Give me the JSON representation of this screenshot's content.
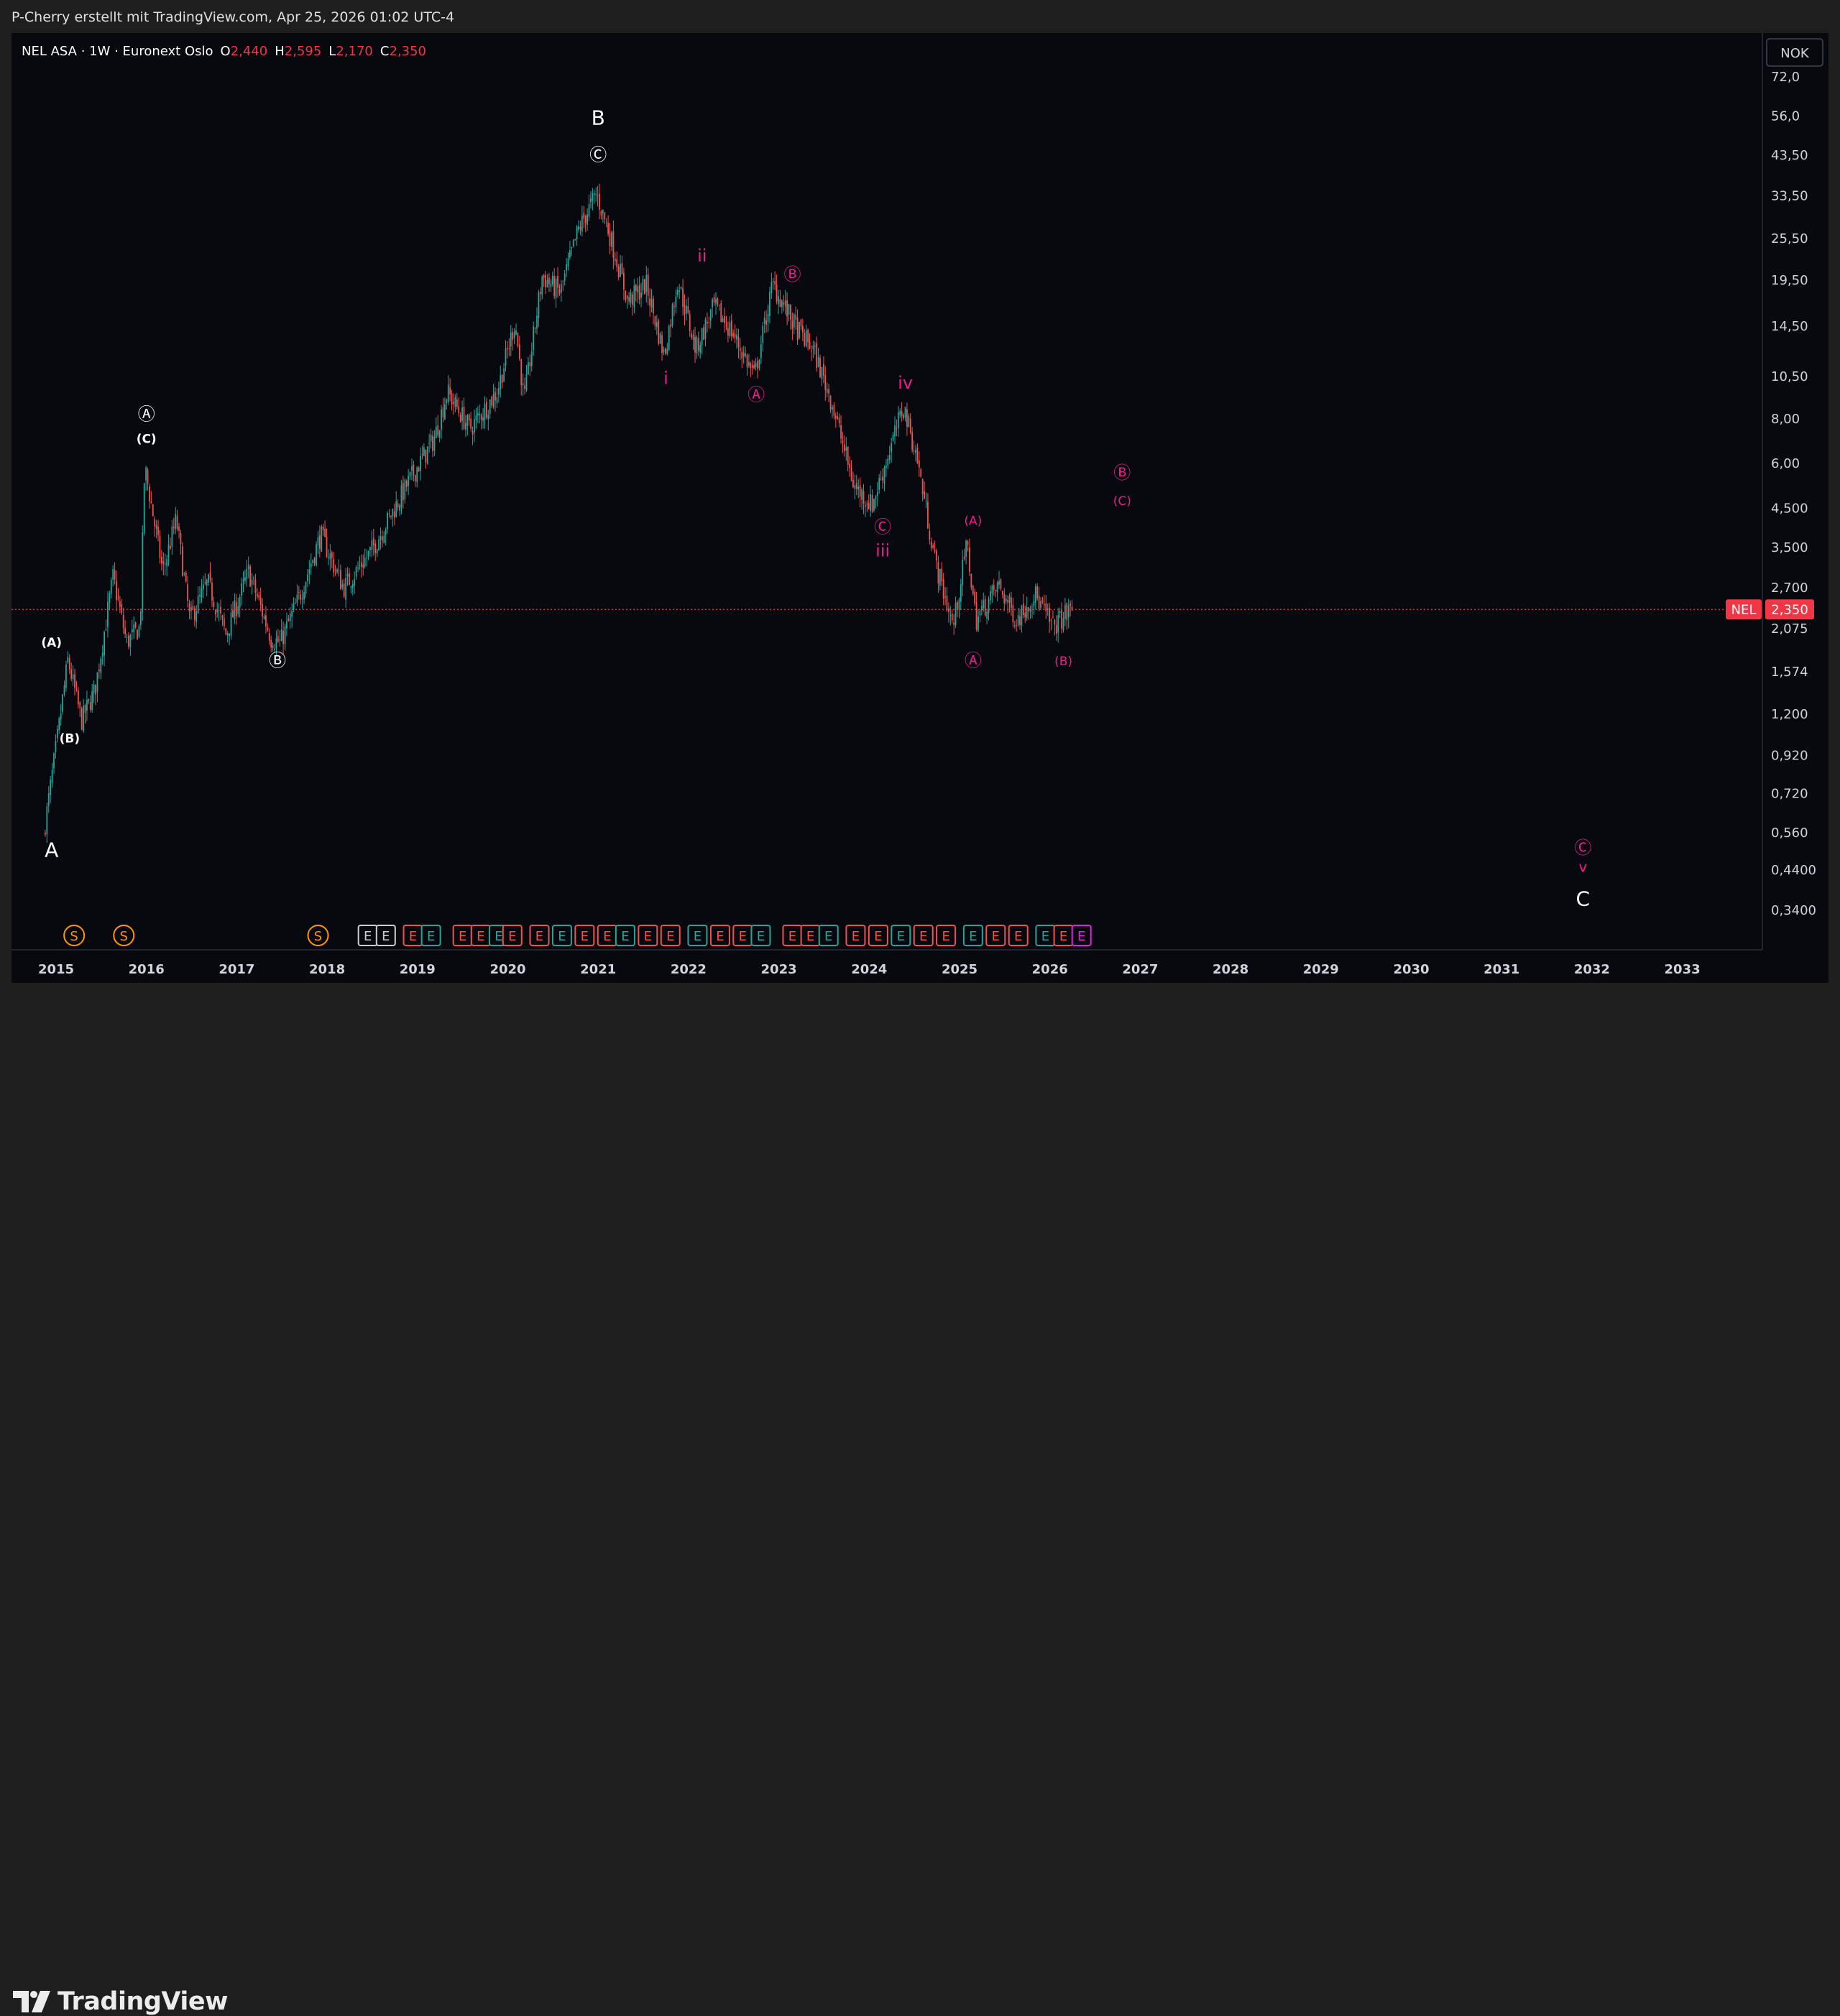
{
  "header": {
    "attribution": "P-Cherry erstellt mit TradingView.com, Apr 25, 2026 01:02 UTC-4"
  },
  "symbol": {
    "name": "NEL ASA · 1W · Euronext Oslo",
    "o_label": "O",
    "o_value": "2,440",
    "h_label": "H",
    "h_value": "2,595",
    "l_label": "L",
    "l_value": "2,170",
    "c_label": "C",
    "c_value": "2,350"
  },
  "currency": "NOK",
  "last_price": {
    "ticker": "NEL",
    "value": "2,350",
    "color": "#f23645"
  },
  "brand": "TradingView",
  "colors": {
    "up": "#26a69a",
    "down": "#ef5350",
    "wave_white": "#ffffff",
    "wave_magenta": "#e91e8c",
    "dividend": "#ff9800"
  },
  "chart_data": {
    "type": "candlestick",
    "scale": "log",
    "ylim": [
      0.29,
      86
    ],
    "x_range": [
      "2014-09",
      "2033-12"
    ],
    "x_ticks": [
      "2015",
      "2016",
      "2017",
      "2018",
      "2019",
      "2020",
      "2021",
      "2022",
      "2023",
      "2024",
      "2025",
      "2026",
      "2027",
      "2028",
      "2029",
      "2030",
      "2031",
      "2032",
      "2033"
    ],
    "y_ticks": [
      "72,0",
      "56,0",
      "43,50",
      "33,50",
      "25,50",
      "19,50",
      "14,50",
      "10,50",
      "8,00",
      "6,00",
      "4,500",
      "3,500",
      "2,700",
      "2,075",
      "1,574",
      "1,200",
      "0,920",
      "0,720",
      "0,560",
      "0,4400",
      "0,3400"
    ],
    "price_path": [
      {
        "t": 2014.88,
        "p": 0.55
      },
      {
        "t": 2015.05,
        "p": 1.1
      },
      {
        "t": 2015.15,
        "p": 1.7
      },
      {
        "t": 2015.3,
        "p": 1.15
      },
      {
        "t": 2015.45,
        "p": 1.4
      },
      {
        "t": 2015.65,
        "p": 2.9
      },
      {
        "t": 2015.8,
        "p": 1.9
      },
      {
        "t": 2015.95,
        "p": 2.1
      },
      {
        "t": 2016.0,
        "p": 5.9
      },
      {
        "t": 2016.2,
        "p": 3.0
      },
      {
        "t": 2016.35,
        "p": 4.2
      },
      {
        "t": 2016.5,
        "p": 2.2
      },
      {
        "t": 2016.7,
        "p": 2.8
      },
      {
        "t": 2016.9,
        "p": 2.0
      },
      {
        "t": 2017.15,
        "p": 3.0
      },
      {
        "t": 2017.4,
        "p": 1.95
      },
      {
        "t": 2017.5,
        "p": 1.9
      },
      {
        "t": 2017.7,
        "p": 2.5
      },
      {
        "t": 2017.95,
        "p": 3.8
      },
      {
        "t": 2018.2,
        "p": 2.7
      },
      {
        "t": 2018.5,
        "p": 3.4
      },
      {
        "t": 2018.7,
        "p": 4.2
      },
      {
        "t": 2018.95,
        "p": 5.5
      },
      {
        "t": 2019.2,
        "p": 7.0
      },
      {
        "t": 2019.35,
        "p": 9.5
      },
      {
        "t": 2019.6,
        "p": 7.5
      },
      {
        "t": 2019.9,
        "p": 9.5
      },
      {
        "t": 2020.1,
        "p": 15.0
      },
      {
        "t": 2020.2,
        "p": 9.0
      },
      {
        "t": 2020.4,
        "p": 20.0
      },
      {
        "t": 2020.6,
        "p": 18.0
      },
      {
        "t": 2020.8,
        "p": 27.0
      },
      {
        "t": 2021.0,
        "p": 34.0
      },
      {
        "t": 2021.15,
        "p": 26.0
      },
      {
        "t": 2021.35,
        "p": 17.0
      },
      {
        "t": 2021.55,
        "p": 19.0
      },
      {
        "t": 2021.75,
        "p": 12.0
      },
      {
        "t": 2021.9,
        "p": 19.5
      },
      {
        "t": 2022.1,
        "p": 12.5
      },
      {
        "t": 2022.3,
        "p": 16.5
      },
      {
        "t": 2022.5,
        "p": 14.0
      },
      {
        "t": 2022.75,
        "p": 10.5
      },
      {
        "t": 2022.95,
        "p": 19.0
      },
      {
        "t": 2023.2,
        "p": 14.5
      },
      {
        "t": 2023.4,
        "p": 12.5
      },
      {
        "t": 2023.6,
        "p": 9.0
      },
      {
        "t": 2023.85,
        "p": 5.2
      },
      {
        "t": 2024.05,
        "p": 4.6
      },
      {
        "t": 2024.2,
        "p": 6.0
      },
      {
        "t": 2024.4,
        "p": 8.7
      },
      {
        "t": 2024.55,
        "p": 6.2
      },
      {
        "t": 2024.75,
        "p": 3.2
      },
      {
        "t": 2024.95,
        "p": 2.1
      },
      {
        "t": 2025.1,
        "p": 3.6
      },
      {
        "t": 2025.2,
        "p": 2.2
      },
      {
        "t": 2025.45,
        "p": 2.75
      },
      {
        "t": 2025.65,
        "p": 2.2
      },
      {
        "t": 2025.85,
        "p": 2.6
      },
      {
        "t": 2026.05,
        "p": 2.1
      },
      {
        "t": 2026.25,
        "p": 2.35
      }
    ],
    "wave_labels": [
      {
        "text": "A",
        "t": 2014.95,
        "p": 0.48,
        "color": "#ffffff",
        "size": 28
      },
      {
        "text": "(A)",
        "t": 2014.95,
        "p": 1.85,
        "color": "#ffffff",
        "size": 17,
        "bold": true
      },
      {
        "text": "(B)",
        "t": 2015.15,
        "p": 1.0,
        "color": "#ffffff",
        "size": 17,
        "bold": true
      },
      {
        "text": "Ⓐ",
        "t": 2016.0,
        "p": 7.95,
        "color": "#ffffff",
        "size": 24
      },
      {
        "text": "(C)",
        "t": 2016.0,
        "p": 6.85,
        "color": "#ffffff",
        "size": 17,
        "bold": true
      },
      {
        "text": "Ⓑ",
        "t": 2017.45,
        "p": 1.63,
        "color": "#ffffff",
        "size": 24
      },
      {
        "text": "B",
        "t": 2021.0,
        "p": 53.0,
        "color": "#ffffff",
        "size": 28
      },
      {
        "text": "Ⓒ",
        "t": 2021.0,
        "p": 42.0,
        "color": "#ffffff",
        "size": 24
      },
      {
        "text": "i",
        "t": 2021.75,
        "p": 10.0,
        "color": "#e91e8c",
        "size": 24
      },
      {
        "text": "ii",
        "t": 2022.15,
        "p": 22.0,
        "color": "#e91e8c",
        "size": 24
      },
      {
        "text": "Ⓐ",
        "t": 2022.75,
        "p": 9.0,
        "color": "#e91e8c",
        "size": 24
      },
      {
        "text": "Ⓑ",
        "t": 2023.15,
        "p": 19.5,
        "color": "#e91e8c",
        "size": 24
      },
      {
        "text": "iv",
        "t": 2024.4,
        "p": 9.7,
        "color": "#e91e8c",
        "size": 24
      },
      {
        "text": "Ⓒ",
        "t": 2024.15,
        "p": 3.85,
        "color": "#e91e8c",
        "size": 24
      },
      {
        "text": "iii",
        "t": 2024.15,
        "p": 3.3,
        "color": "#e91e8c",
        "size": 24
      },
      {
        "text": "(A)",
        "t": 2025.15,
        "p": 4.05,
        "color": "#e91e8c",
        "size": 17
      },
      {
        "text": "Ⓐ",
        "t": 2025.15,
        "p": 1.63,
        "color": "#e91e8c",
        "size": 24
      },
      {
        "text": "(B)",
        "t": 2026.15,
        "p": 1.64,
        "color": "#e91e8c",
        "size": 17
      },
      {
        "text": "Ⓑ",
        "t": 2026.8,
        "p": 5.45,
        "color": "#e91e8c",
        "size": 24
      },
      {
        "text": "(C)",
        "t": 2026.8,
        "p": 4.6,
        "color": "#e91e8c",
        "size": 17
      },
      {
        "text": "Ⓒ",
        "t": 2031.9,
        "p": 0.49,
        "color": "#e91e8c",
        "size": 24
      },
      {
        "text": "v",
        "t": 2031.9,
        "p": 0.435,
        "color": "#e91e8c",
        "size": 20
      },
      {
        "text": "C",
        "t": 2031.9,
        "p": 0.35,
        "color": "#ffffff",
        "size": 28
      }
    ],
    "events": [
      {
        "t": 2015.2,
        "type": "S"
      },
      {
        "t": 2015.75,
        "type": "S"
      },
      {
        "t": 2017.9,
        "type": "S"
      },
      {
        "t": 2018.45,
        "type": "E"
      },
      {
        "t": 2018.65,
        "type": "E"
      },
      {
        "t": 2018.95,
        "type": "E"
      },
      {
        "t": 2019.15,
        "type": "E"
      },
      {
        "t": 2019.5,
        "type": "E"
      },
      {
        "t": 2019.7,
        "type": "E"
      },
      {
        "t": 2019.9,
        "type": "E"
      },
      {
        "t": 2020.05,
        "type": "E"
      },
      {
        "t": 2020.35,
        "type": "E"
      },
      {
        "t": 2020.6,
        "type": "E"
      },
      {
        "t": 2020.85,
        "type": "E"
      },
      {
        "t": 2021.1,
        "type": "E"
      },
      {
        "t": 2021.3,
        "type": "E"
      },
      {
        "t": 2021.55,
        "type": "E"
      },
      {
        "t": 2021.8,
        "type": "E"
      },
      {
        "t": 2022.1,
        "type": "E"
      },
      {
        "t": 2022.35,
        "type": "E"
      },
      {
        "t": 2022.6,
        "type": "E"
      },
      {
        "t": 2022.8,
        "type": "E"
      },
      {
        "t": 2023.15,
        "type": "E"
      },
      {
        "t": 2023.35,
        "type": "E"
      },
      {
        "t": 2023.55,
        "type": "E"
      },
      {
        "t": 2023.85,
        "type": "E"
      },
      {
        "t": 2024.1,
        "type": "E"
      },
      {
        "t": 2024.35,
        "type": "E"
      },
      {
        "t": 2024.6,
        "type": "E"
      },
      {
        "t": 2024.85,
        "type": "E"
      },
      {
        "t": 2025.15,
        "type": "E"
      },
      {
        "t": 2025.4,
        "type": "E"
      },
      {
        "t": 2025.65,
        "type": "E"
      },
      {
        "t": 2025.95,
        "type": "E"
      },
      {
        "t": 2026.15,
        "type": "E"
      },
      {
        "t": 2026.35,
        "type": "E"
      }
    ]
  }
}
